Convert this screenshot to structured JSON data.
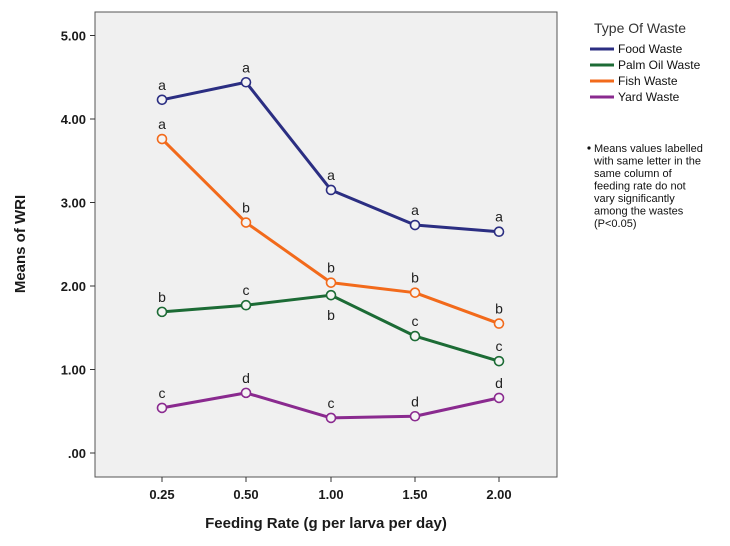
{
  "chart_data": {
    "type": "line",
    "xlabel": "Feeding Rate (g per larva per day)",
    "ylabel": "Means of WRI",
    "categories": [
      "0.25",
      "0.50",
      "1.00",
      "1.50",
      "2.00"
    ],
    "yticks": [
      ".00",
      "1.00",
      "2.00",
      "3.00",
      "4.00",
      "5.00"
    ],
    "ylim": [
      -0.2,
      5.2
    ],
    "grid": false,
    "legend_title": "Type Of Waste",
    "legend_position": "right",
    "series": [
      {
        "name": "Food Waste",
        "color": "#2b2e82",
        "values": [
          4.23,
          4.44,
          3.15,
          2.73,
          2.65
        ],
        "letters": [
          "a",
          "a",
          "a",
          "a",
          "a"
        ],
        "letter_pos": [
          "above",
          "above",
          "above",
          "above",
          "above"
        ]
      },
      {
        "name": "Palm Oil Waste",
        "color": "#1c6b35",
        "values": [
          1.69,
          1.77,
          1.89,
          1.4,
          1.1
        ],
        "letters": [
          "b",
          "c",
          "b",
          "c",
          "c"
        ],
        "letter_pos": [
          "above",
          "above",
          "below",
          "above",
          "above"
        ]
      },
      {
        "name": "Fish Waste",
        "color": "#f26a1b",
        "values": [
          3.76,
          2.76,
          2.04,
          1.92,
          1.55
        ],
        "letters": [
          "a",
          "b",
          "b",
          "b",
          "b"
        ],
        "letter_pos": [
          "above",
          "above",
          "above",
          "above",
          "above"
        ]
      },
      {
        "name": "Yard Waste",
        "color": "#8a2a8f",
        "values": [
          0.54,
          0.72,
          0.42,
          0.44,
          0.66
        ],
        "letters": [
          "c",
          "d",
          "c",
          "d",
          "d"
        ],
        "letter_pos": [
          "above",
          "above",
          "above",
          "above",
          "above"
        ]
      }
    ],
    "note_lines": [
      "Means values labelled",
      "with same letter in the",
      "same column of",
      "feeding rate do not",
      "vary significantly",
      "among the wastes",
      "(P<0.05)"
    ]
  }
}
